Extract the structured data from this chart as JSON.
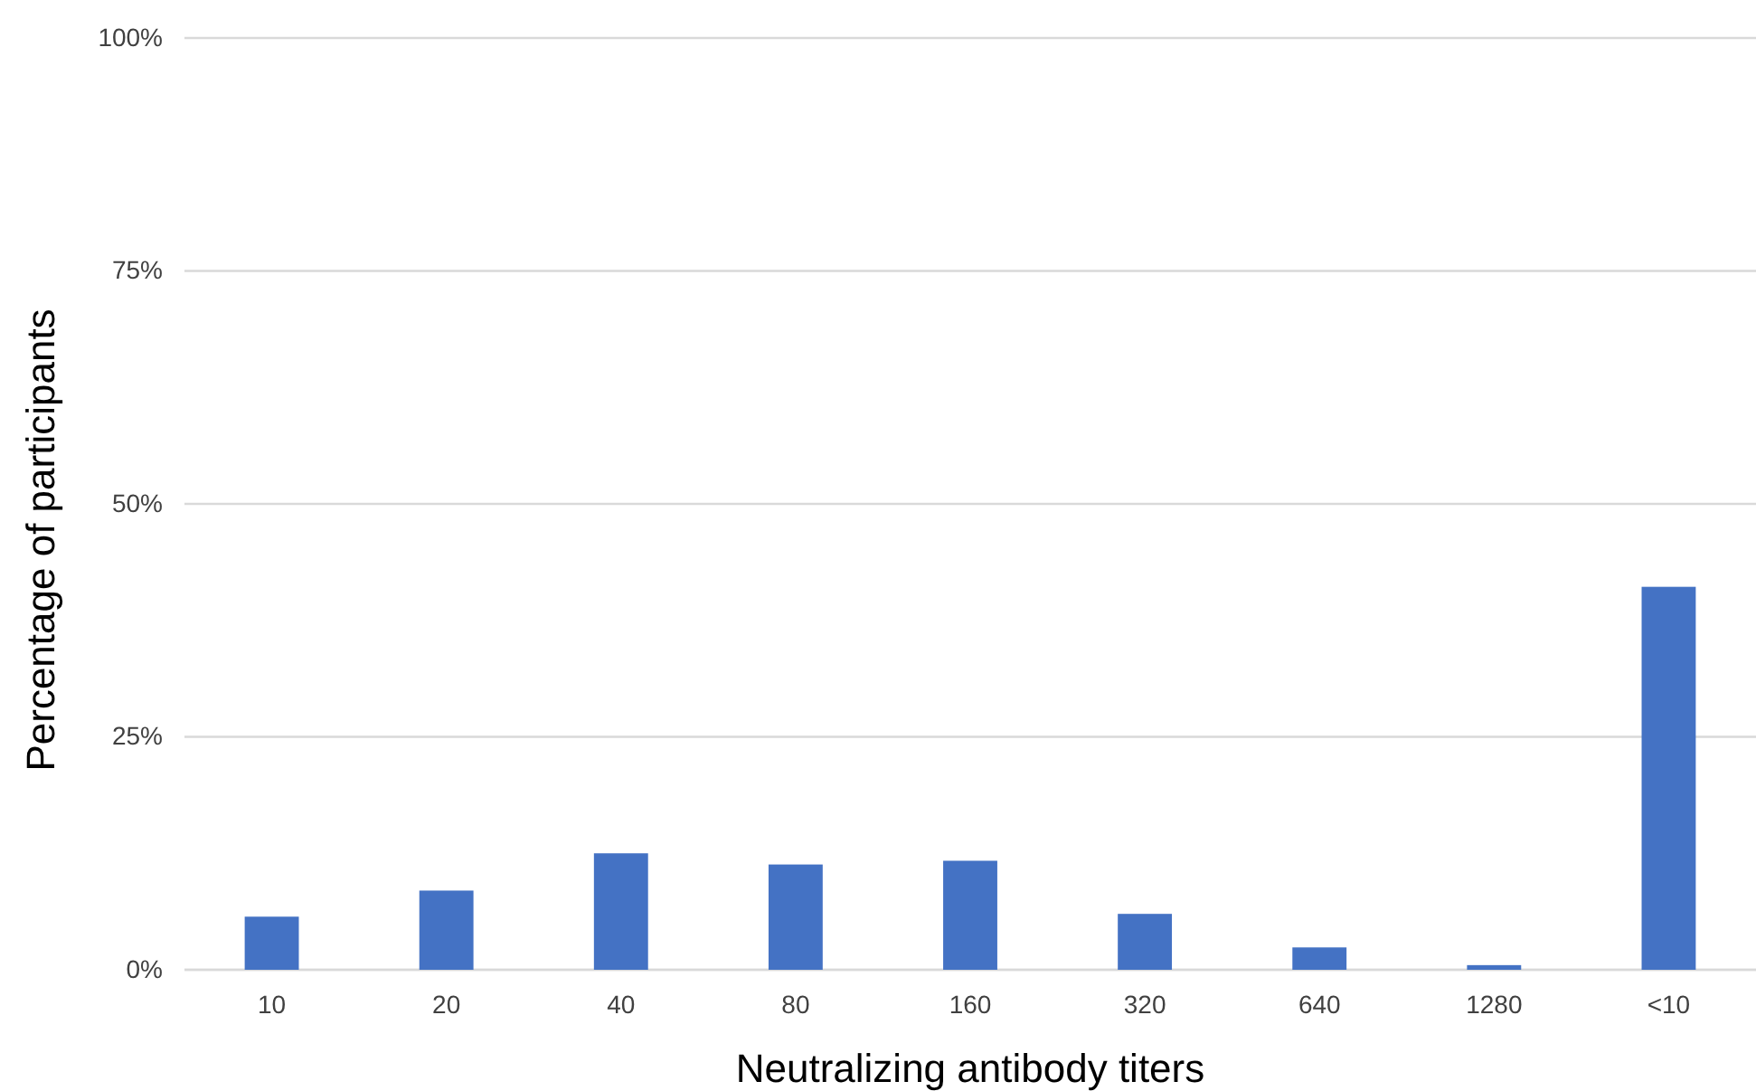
{
  "chart_data": {
    "type": "bar",
    "xlabel": "Neutralizing antibody titers",
    "ylabel": "Percentage of participants",
    "categories": [
      "10",
      "20",
      "40",
      "80",
      "160",
      "320",
      "640",
      "1280",
      "<10"
    ],
    "values": [
      5.7,
      8.5,
      12.5,
      11.3,
      11.7,
      6.0,
      2.4,
      0.5,
      41.1
    ],
    "color": "#4472c4",
    "ylim": [
      0,
      100
    ],
    "yticks": [
      {
        "value": 0,
        "label": "0%"
      },
      {
        "value": 25,
        "label": "25%"
      },
      {
        "value": 50,
        "label": "50%"
      },
      {
        "value": 75,
        "label": "75%"
      },
      {
        "value": 100,
        "label": "100%"
      }
    ],
    "grid": "y"
  }
}
